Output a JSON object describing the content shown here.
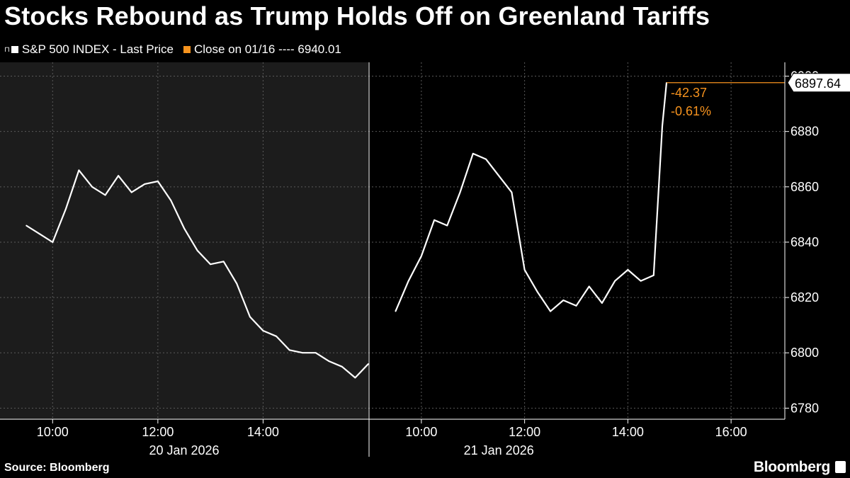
{
  "title": "Stocks Rebound as Trump Holds Off on Greenland Tariffs",
  "legend": [
    {
      "label": "S&P 500 INDEX - Last Price",
      "color": "#ffffff"
    },
    {
      "label": "Close on 01/16 ---- 6940.01",
      "color": "#f7931e"
    }
  ],
  "source": "Source: Bloomberg",
  "brand": "Bloomberg",
  "annotations": {
    "change_abs": "-42.37",
    "change_pct": "-0.61%",
    "last_value": "6897.64"
  },
  "chart_data": {
    "type": "line",
    "title": "Stocks Rebound as Trump Holds Off on Greenland Tariffs",
    "series": [
      {
        "name": "S&P 500 INDEX - Last Price",
        "color": "#ffffff",
        "days": [
          {
            "date": "20 Jan 2026",
            "time": [
              "09:30",
              "09:45",
              "10:00",
              "10:15",
              "10:30",
              "10:45",
              "11:00",
              "11:15",
              "11:30",
              "11:45",
              "12:00",
              "12:15",
              "12:30",
              "12:45",
              "13:00",
              "13:15",
              "13:30",
              "13:45",
              "14:00",
              "14:15",
              "14:30",
              "14:45",
              "15:00",
              "15:15",
              "15:30",
              "15:45",
              "16:00"
            ],
            "values": [
              6846,
              6843,
              6840,
              6852,
              6866,
              6860,
              6857,
              6864,
              6858,
              6861,
              6862,
              6855,
              6845,
              6837,
              6832,
              6833,
              6825,
              6813,
              6808,
              6806,
              6801,
              6800,
              6800,
              6797,
              6795,
              6791,
              6796
            ]
          },
          {
            "date": "21 Jan 2026",
            "time": [
              "09:30",
              "09:45",
              "10:00",
              "10:15",
              "10:30",
              "10:45",
              "11:00",
              "11:15",
              "11:30",
              "11:45",
              "12:00",
              "12:15",
              "12:30",
              "12:45",
              "13:00",
              "13:15",
              "13:30",
              "13:45",
              "14:00",
              "14:15",
              "14:30",
              "14:40",
              "14:45"
            ],
            "values": [
              6815,
              6826,
              6835,
              6848,
              6846,
              6858,
              6872,
              6870,
              6864,
              6858,
              6830,
              6822,
              6815,
              6819,
              6817,
              6824,
              6818,
              6826,
              6830,
              6826,
              6828,
              6882,
              6897.64
            ]
          }
        ]
      }
    ],
    "reference_line": {
      "label": "Close on 01/16",
      "value": 6940.01,
      "color": "#f7931e"
    },
    "y_ticks": [
      6780,
      6800,
      6820,
      6840,
      6860,
      6880,
      6900
    ],
    "ylim": [
      6776,
      6905
    ],
    "x_ticks": [
      {
        "day": 0,
        "label": "10:00"
      },
      {
        "day": 0,
        "label": "12:00"
      },
      {
        "day": 0,
        "label": "14:00"
      },
      {
        "day": 1,
        "label": "10:00"
      },
      {
        "day": 1,
        "label": "12:00"
      },
      {
        "day": 1,
        "label": "14:00"
      },
      {
        "day": 1,
        "label": "16:00"
      }
    ],
    "date_labels": [
      "20 Jan 2026",
      "21 Jan 2026"
    ],
    "grid": true
  }
}
